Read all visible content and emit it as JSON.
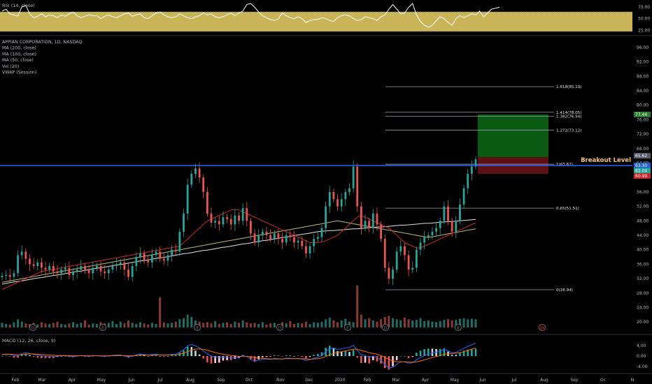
{
  "rsi": {
    "title": "RSI (14, close)",
    "ticks": [
      "75.00",
      "50.00",
      "25.00"
    ],
    "ylim": [
      20,
      85
    ],
    "band": [
      30,
      70
    ],
    "values": [
      66,
      70,
      60,
      58,
      55,
      75,
      78,
      60,
      52,
      55,
      60,
      54,
      58,
      56,
      52,
      58,
      55,
      60,
      64,
      56,
      52,
      55,
      58,
      56,
      56,
      50,
      55,
      58,
      54,
      52,
      56,
      60,
      62,
      55,
      58,
      60,
      52,
      50,
      56,
      62,
      64,
      58,
      54,
      52,
      54,
      60,
      56,
      52,
      50,
      54,
      56,
      62,
      58,
      60,
      54,
      52,
      54,
      58,
      62,
      56,
      62,
      66,
      80,
      82,
      74,
      64,
      56,
      52,
      48,
      46,
      50,
      62,
      56,
      52,
      50,
      54,
      50,
      42,
      46,
      48,
      48,
      52,
      50,
      46,
      44,
      52,
      56,
      58,
      56,
      50,
      46,
      48,
      54,
      52,
      50,
      46,
      54,
      58,
      70,
      80,
      70,
      60,
      62,
      74,
      82,
      58,
      44,
      36,
      32,
      36,
      46,
      54,
      50,
      42,
      36,
      50,
      56,
      52,
      56,
      60,
      58,
      66,
      54,
      62,
      70,
      72,
      74
    ]
  },
  "price": {
    "legend": [
      "APPIAN CORPORATION, 1D, NASDAQ",
      "MA (200, close)",
      "MA (100, close)",
      "MA (50, close)",
      "Vol (20)",
      "VWAP (Session)"
    ],
    "ticks": [
      "96.00",
      "92.00",
      "88.00",
      "84.00",
      "80.00",
      "76.00",
      "72.00",
      "68.00",
      "64.00",
      "60.00",
      "56.00",
      "52.00",
      "48.00",
      "44.00",
      "40.00",
      "36.00",
      "32.00",
      "28.00",
      "24.00",
      "20.00"
    ],
    "ylim": [
      18.5,
      98.1
    ],
    "closes": [
      32.8,
      33.0,
      32.5,
      33.5,
      38.5,
      39.5,
      37.5,
      36.0,
      35.5,
      36.5,
      35.0,
      34.5,
      35.5,
      34.0,
      33.5,
      34.5,
      35.0,
      33.0,
      34.0,
      34.5,
      35.5,
      34.5,
      33.5,
      35.0,
      35.5,
      34.0,
      33.5,
      34.5,
      35.5,
      36.0,
      36.5,
      34.5,
      32.5,
      35.5,
      38.0,
      39.0,
      37.0,
      36.5,
      38.5,
      39.5,
      37.5,
      37.0,
      38.5,
      40.0,
      39.5,
      45.0,
      50.0,
      58.0,
      61.0,
      62.5,
      60.0,
      56.0,
      50.0,
      47.5,
      48.0,
      47.0,
      49.0,
      48.5,
      47.0,
      49.5,
      48.0,
      51.5,
      48.0,
      44.5,
      42.0,
      44.0,
      45.0,
      44.0,
      43.0,
      44.5,
      43.0,
      42.0,
      44.0,
      43.5,
      42.0,
      42.5,
      41.0,
      39.0,
      41.0,
      43.0,
      43.5,
      46.0,
      52.0,
      56.0,
      54.0,
      52.0,
      54.0,
      56.0,
      57.0,
      63.0,
      52.0,
      46.0,
      48.0,
      46.0,
      50.0,
      47.0,
      43.0,
      35.0,
      32.0,
      34.5,
      39.5,
      41.0,
      38.5,
      34.5,
      35.0,
      40.0,
      42.0,
      43.5,
      44.0,
      45.0,
      46.0,
      48.0,
      52.0,
      48.0,
      45.0,
      48.0,
      52.5,
      57.0,
      61.0,
      63.0,
      65.0
    ],
    "ma200": [
      30.5,
      30.7,
      30.9,
      31.1,
      31.2,
      31.4,
      31.6,
      31.8,
      32.0,
      32.2,
      32.3,
      32.5,
      32.7,
      32.9,
      33.0,
      33.2,
      33.4,
      33.6,
      33.8,
      34.0,
      34.1,
      34.3,
      34.5,
      34.7,
      34.9,
      35.0,
      35.2,
      35.4,
      35.6,
      35.8,
      35.9,
      36.1,
      36.3,
      36.5,
      36.7,
      36.9,
      37.0,
      37.2,
      37.4,
      37.6,
      37.8,
      37.9,
      38.1,
      38.3,
      38.5,
      38.7,
      38.9,
      39.0,
      39.2,
      39.4,
      39.6,
      39.8,
      39.9,
      40.1,
      40.3,
      40.5,
      40.7,
      40.8,
      41.0,
      41.2,
      41.4,
      41.6,
      41.7,
      41.9,
      42.1,
      42.3,
      42.5,
      42.6,
      42.8,
      43.0,
      43.2,
      43.4,
      43.5,
      43.7,
      43.9,
      44.1,
      44.3,
      44.4,
      44.6,
      44.8,
      45.0,
      45.1,
      45.2,
      45.3,
      45.3,
      45.4,
      45.5,
      45.6,
      45.7,
      45.8,
      45.8,
      45.9,
      46.0,
      46.1,
      46.2,
      46.3,
      46.3,
      46.4,
      46.5,
      46.6,
      46.7,
      46.8,
      46.8,
      46.9,
      47.0,
      47.1,
      47.2,
      47.3,
      47.3,
      47.4,
      47.5,
      47.6,
      47.7,
      47.8,
      47.8,
      47.9,
      48.0,
      48.1,
      48.2,
      48.3,
      48.4
    ],
    "ma100": [
      31.0,
      31.2,
      31.4,
      31.6,
      31.8,
      32.0,
      32.2,
      32.4,
      32.6,
      32.8,
      33.0,
      33.2,
      33.4,
      33.6,
      33.8,
      34.0,
      34.2,
      34.4,
      34.6,
      34.8,
      35.0,
      35.2,
      35.4,
      35.6,
      35.8,
      36.0,
      36.2,
      36.4,
      36.6,
      36.8,
      37.0,
      37.2,
      37.4,
      37.6,
      37.8,
      38.0,
      38.2,
      38.4,
      38.6,
      38.8,
      39.0,
      39.2,
      39.4,
      39.6,
      39.8,
      40.0,
      40.2,
      40.4,
      40.6,
      40.8,
      41.0,
      41.2,
      41.4,
      41.6,
      41.8,
      42.0,
      42.2,
      42.4,
      42.6,
      42.8,
      43.0,
      43.2,
      43.4,
      43.6,
      43.8,
      44.0,
      44.2,
      44.4,
      44.6,
      44.8,
      45.0,
      45.2,
      45.4,
      45.6,
      45.8,
      46.0,
      46.2,
      46.4,
      46.6,
      46.8,
      47.0,
      47.2,
      47.4,
      47.6,
      47.8,
      48.0,
      47.8,
      47.6,
      47.4,
      47.2,
      47.0,
      46.8,
      46.6,
      46.4,
      46.2,
      46.0,
      45.8,
      45.6,
      45.4,
      45.2,
      45.0,
      44.8,
      44.6,
      44.4,
      44.2,
      44.0,
      43.8,
      43.6,
      43.4,
      43.6,
      43.8,
      44.0,
      44.2,
      44.4,
      44.6,
      44.8,
      45.0,
      45.2,
      45.4,
      45.6,
      45.8
    ],
    "ma50": [
      29.0,
      29.5,
      30.0,
      30.5,
      31.0,
      31.5,
      32.0,
      32.5,
      33.0,
      33.5,
      34.0,
      34.2,
      34.4,
      34.6,
      34.8,
      35.0,
      35.2,
      35.4,
      35.6,
      35.8,
      36.0,
      36.2,
      36.4,
      36.6,
      36.8,
      37.0,
      37.2,
      37.4,
      37.6,
      37.8,
      38.0,
      38.2,
      38.4,
      38.6,
      38.8,
      39.0,
      39.2,
      39.4,
      39.6,
      39.8,
      40.0,
      40.2,
      40.4,
      40.6,
      40.8,
      41.0,
      42.0,
      43.0,
      44.0,
      45.0,
      46.0,
      47.0,
      48.0,
      48.5,
      49.0,
      49.5,
      50.0,
      50.5,
      51.0,
      51.2,
      51.0,
      50.5,
      50.0,
      49.5,
      49.0,
      48.5,
      48.0,
      47.5,
      47.0,
      46.5,
      46.0,
      45.5,
      45.0,
      44.5,
      44.0,
      43.5,
      43.0,
      42.5,
      42.0,
      42.0,
      42.0,
      42.2,
      42.5,
      43.0,
      43.5,
      44.0,
      45.0,
      46.0,
      47.0,
      48.0,
      49.0,
      49.5,
      49.0,
      48.5,
      48.0,
      47.5,
      47.0,
      46.5,
      46.0,
      45.0,
      44.0,
      43.0,
      42.0,
      41.5,
      41.0,
      40.5,
      40.5,
      41.0,
      41.5,
      42.0,
      42.5,
      43.0,
      43.5,
      44.0,
      44.5,
      45.0,
      45.5,
      46.0,
      46.5,
      47.0,
      47.5
    ],
    "breakout_label": "Breakout Level",
    "breakout_level": 63.3,
    "fib": [
      {
        "label": "1.618(85.13)",
        "value": 85.13
      },
      {
        "label": "1.414(78.05)",
        "value": 78.05
      },
      {
        "label": "1.382(76.94)",
        "value": 76.94
      },
      {
        "label": "1.272(73.12)",
        "value": 73.12
      },
      {
        "label": "1(63.67)",
        "value": 63.67
      },
      {
        "label": "0.65(51.51)",
        "value": 51.51
      },
      {
        "label": "0(28.94)",
        "value": 28.94
      }
    ],
    "position": {
      "target": 77.44,
      "entry": 65.62,
      "stop": 60.99
    },
    "badges": [
      {
        "text": "77.44",
        "value": 77.44,
        "color": "#2e7d32"
      },
      {
        "text": "65.62",
        "value": 65.62,
        "color": "#555b67"
      },
      {
        "text": "63.30",
        "value": 63.3,
        "color": "#1e63d6"
      },
      {
        "text": "62.04",
        "value": 62.04,
        "color": "#26a69a"
      },
      {
        "text": "60.99",
        "value": 60.99,
        "color": "#c62828"
      }
    ],
    "event_markers": [
      "D",
      "E",
      "E",
      "D",
      "E",
      "D",
      "E",
      "D",
      "E",
      "E"
    ]
  },
  "macd": {
    "title": "MACD (12, 26, close, 9)",
    "ticks": [
      "4.00",
      "0.00",
      "-4.00"
    ],
    "ylim": [
      -6.5,
      6.5
    ],
    "macd": [
      0.5,
      0.8,
      0.6,
      0.2,
      0.1,
      1.0,
      1.3,
      1.0,
      0.6,
      0.3,
      0.1,
      0.0,
      -0.1,
      -0.2,
      0.0,
      0.1,
      0.2,
      0.0,
      -0.2,
      0.0,
      0.2,
      0.1,
      -0.1,
      0.1,
      0.2,
      0.0,
      -0.1,
      0.1,
      0.3,
      0.4,
      0.4,
      0.1,
      -0.3,
      0.0,
      0.5,
      0.8,
      0.6,
      0.4,
      0.6,
      0.8,
      0.5,
      0.3,
      0.4,
      0.7,
      0.7,
      1.5,
      2.5,
      4.0,
      4.5,
      4.0,
      3.2,
      2.0,
      0.8,
      0.0,
      -0.3,
      -0.6,
      -0.4,
      -0.5,
      -0.8,
      -0.6,
      -0.6,
      0.2,
      -0.2,
      -1.2,
      -2.0,
      -1.6,
      -1.2,
      -1.2,
      -1.3,
      -0.9,
      -1.0,
      -1.2,
      -0.8,
      -0.8,
      -1.0,
      -0.9,
      -1.2,
      -1.7,
      -1.4,
      -0.8,
      -0.5,
      0.2,
      1.8,
      3.0,
      3.0,
      2.6,
      2.8,
      3.2,
      3.3,
      4.2,
      2.2,
      0.5,
      0.2,
      -0.5,
      0.0,
      -0.6,
      -1.6,
      -3.4,
      -4.6,
      -4.4,
      -3.2,
      -2.2,
      -2.2,
      -2.8,
      -2.6,
      -1.4,
      -0.6,
      0.2,
      0.8,
      1.2,
      1.5,
      1.9,
      2.6,
      2.0,
      1.3,
      1.4,
      2.2,
      3.0,
      3.8,
      4.4,
      5.0
    ],
    "signal": [
      0.6,
      0.7,
      0.7,
      0.6,
      0.5,
      0.6,
      0.7,
      0.8,
      0.8,
      0.7,
      0.6,
      0.5,
      0.4,
      0.3,
      0.2,
      0.2,
      0.2,
      0.2,
      0.1,
      0.1,
      0.1,
      0.1,
      0.1,
      0.1,
      0.1,
      0.1,
      0.1,
      0.1,
      0.1,
      0.2,
      0.2,
      0.2,
      0.1,
      0.1,
      0.2,
      0.3,
      0.4,
      0.4,
      0.4,
      0.5,
      0.5,
      0.5,
      0.5,
      0.5,
      0.5,
      0.7,
      1.1,
      1.7,
      2.3,
      2.7,
      2.8,
      2.6,
      2.3,
      1.8,
      1.4,
      1.0,
      0.7,
      0.5,
      0.2,
      0.1,
      -0.1,
      -0.1,
      -0.1,
      -0.3,
      -0.6,
      -0.8,
      -0.9,
      -1.0,
      -1.1,
      -1.1,
      -1.1,
      -1.1,
      -1.0,
      -1.0,
      -1.0,
      -1.0,
      -1.0,
      -1.1,
      -1.2,
      -1.1,
      -1.0,
      -0.7,
      -0.2,
      0.5,
      1.0,
      1.4,
      1.7,
      2.0,
      2.3,
      2.7,
      2.6,
      2.2,
      1.8,
      1.3,
      1.0,
      0.7,
      0.2,
      -0.5,
      -1.3,
      -1.9,
      -2.2,
      -2.2,
      -2.2,
      -2.3,
      -2.4,
      -2.2,
      -1.9,
      -1.5,
      -1.0,
      -0.6,
      -0.2,
      0.2,
      0.7,
      0.9,
      1.0,
      1.1,
      1.3,
      1.7,
      2.2,
      2.7,
      3.2
    ]
  },
  "volume": [
    8,
    6,
    5,
    9,
    14,
    10,
    7,
    6,
    8,
    5,
    9,
    7,
    6,
    8,
    10,
    6,
    5,
    7,
    9,
    6,
    8,
    12,
    5,
    7,
    6,
    9,
    7,
    8,
    11,
    6,
    10,
    7,
    12,
    8,
    6,
    9,
    7,
    5,
    8,
    6,
    52,
    9,
    7,
    8,
    10,
    14,
    16,
    22,
    18,
    12,
    10,
    8,
    9,
    7,
    11,
    6,
    8,
    9,
    6,
    10,
    8,
    12,
    9,
    7,
    8,
    6,
    9,
    5,
    7,
    8,
    6,
    9,
    7,
    11,
    6,
    8,
    7,
    10,
    6,
    9,
    8,
    10,
    14,
    17,
    12,
    9,
    12,
    15,
    10,
    9,
    72,
    22,
    14,
    16,
    12,
    10,
    14,
    18,
    20,
    16,
    14,
    12,
    17,
    14,
    12,
    13,
    16,
    11,
    12,
    10,
    9,
    11,
    13,
    14,
    12,
    13,
    15,
    16,
    14,
    15,
    14
  ],
  "xaxis": {
    "months": [
      "Feb",
      "Mar",
      "Apr",
      "May",
      "Jun",
      "Jul",
      "Aug",
      "Sep",
      "Oct",
      "Nov",
      "Dec",
      "2020",
      "Feb",
      "Mar",
      "Apr",
      "May",
      "Jun",
      "Jul",
      "Aug",
      "Sep",
      "Oc",
      "N"
    ]
  },
  "colors": {
    "up": "#26a69a",
    "down": "#ef5350",
    "blue": "#2962ff",
    "rsi_band": "#c9b458",
    "ma200": "#e0e0e0",
    "ma100": "#bdb76b",
    "ma50": "#c62828"
  }
}
